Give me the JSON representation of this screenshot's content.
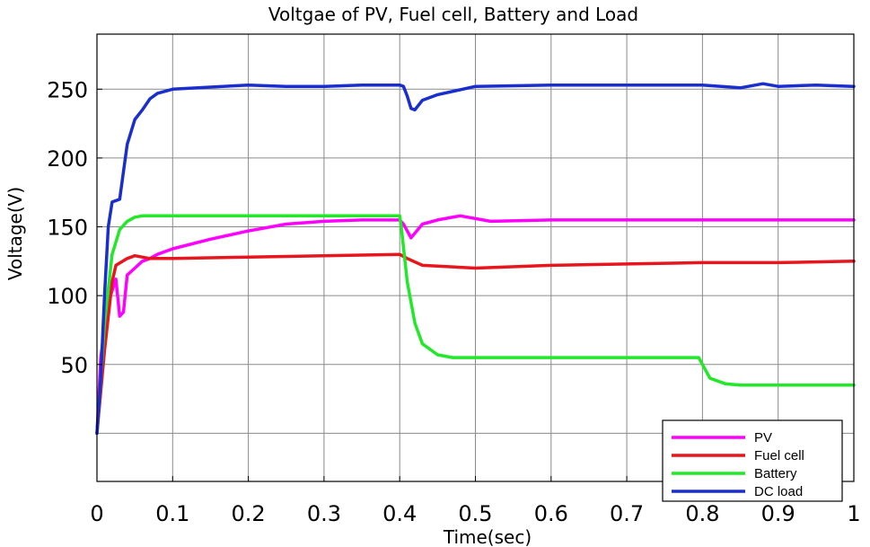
{
  "chart_data": {
    "type": "line",
    "title": "Voltgae of PV, Fuel cell, Battery and Load",
    "xlabel": "Time(sec)",
    "ylabel": "Voltage(V)",
    "xlim": [
      0,
      1
    ],
    "ylim": [
      -35,
      290
    ],
    "xticks": [
      0,
      0.1,
      0.2,
      0.3,
      0.4,
      0.5,
      0.6,
      0.7,
      0.8,
      0.9,
      1
    ],
    "xtick_labels": [
      "0",
      "0.1",
      "0.2",
      "0.3",
      "0.4",
      "0.5",
      "0.6",
      "0.7",
      "0.8",
      "0.9",
      "1"
    ],
    "yticks": [
      50,
      100,
      150,
      200,
      250
    ],
    "ytick_labels": [
      "50",
      "100",
      "150",
      "200",
      "250"
    ],
    "grid_lines_y": [
      0,
      50,
      100,
      150,
      200,
      250
    ],
    "grid": true,
    "legend_position": "bottom-right",
    "series": [
      {
        "name": "PV",
        "color": "#ff00ff",
        "points": [
          [
            0.0,
            0
          ],
          [
            0.005,
            55
          ],
          [
            0.015,
            95
          ],
          [
            0.025,
            112
          ],
          [
            0.03,
            85
          ],
          [
            0.035,
            88
          ],
          [
            0.04,
            115
          ],
          [
            0.05,
            120
          ],
          [
            0.06,
            125
          ],
          [
            0.07,
            127
          ],
          [
            0.08,
            130
          ],
          [
            0.1,
            134
          ],
          [
            0.15,
            141
          ],
          [
            0.2,
            147
          ],
          [
            0.25,
            152
          ],
          [
            0.3,
            154
          ],
          [
            0.35,
            155
          ],
          [
            0.4,
            155
          ],
          [
            0.405,
            152
          ],
          [
            0.415,
            142
          ],
          [
            0.43,
            152
          ],
          [
            0.45,
            155
          ],
          [
            0.48,
            158
          ],
          [
            0.52,
            154
          ],
          [
            0.6,
            155
          ],
          [
            0.7,
            155
          ],
          [
            0.8,
            155
          ],
          [
            0.9,
            155
          ],
          [
            1.0,
            155
          ]
        ]
      },
      {
        "name": "Fuel cell",
        "color": "#e8151e",
        "points": [
          [
            0.0,
            0
          ],
          [
            0.01,
            60
          ],
          [
            0.02,
            110
          ],
          [
            0.025,
            122
          ],
          [
            0.04,
            127
          ],
          [
            0.05,
            129
          ],
          [
            0.07,
            127
          ],
          [
            0.1,
            127
          ],
          [
            0.2,
            128
          ],
          [
            0.3,
            129
          ],
          [
            0.4,
            130
          ],
          [
            0.41,
            127
          ],
          [
            0.43,
            122
          ],
          [
            0.5,
            120
          ],
          [
            0.6,
            122
          ],
          [
            0.7,
            123
          ],
          [
            0.8,
            124
          ],
          [
            0.9,
            124
          ],
          [
            1.0,
            125
          ]
        ]
      },
      {
        "name": "Battery",
        "color": "#22e82a",
        "points": [
          [
            0.0,
            0
          ],
          [
            0.01,
            80
          ],
          [
            0.02,
            130
          ],
          [
            0.03,
            148
          ],
          [
            0.04,
            154
          ],
          [
            0.05,
            157
          ],
          [
            0.06,
            158
          ],
          [
            0.2,
            158
          ],
          [
            0.3,
            158
          ],
          [
            0.4,
            158
          ],
          [
            0.402,
            150
          ],
          [
            0.41,
            110
          ],
          [
            0.42,
            80
          ],
          [
            0.43,
            65
          ],
          [
            0.45,
            57
          ],
          [
            0.47,
            55
          ],
          [
            0.5,
            55
          ],
          [
            0.6,
            55
          ],
          [
            0.7,
            55
          ],
          [
            0.795,
            55
          ],
          [
            0.8,
            50
          ],
          [
            0.81,
            40
          ],
          [
            0.83,
            36
          ],
          [
            0.85,
            35
          ],
          [
            0.9,
            35
          ],
          [
            1.0,
            35
          ]
        ]
      },
      {
        "name": "DC load",
        "color": "#1a2ed0",
        "points": [
          [
            0.0,
            0
          ],
          [
            0.005,
            40
          ],
          [
            0.01,
            100
          ],
          [
            0.015,
            150
          ],
          [
            0.02,
            168
          ],
          [
            0.03,
            170
          ],
          [
            0.035,
            190
          ],
          [
            0.04,
            210
          ],
          [
            0.05,
            228
          ],
          [
            0.06,
            235
          ],
          [
            0.07,
            243
          ],
          [
            0.08,
            247
          ],
          [
            0.1,
            250
          ],
          [
            0.2,
            253
          ],
          [
            0.25,
            252
          ],
          [
            0.3,
            252
          ],
          [
            0.35,
            253
          ],
          [
            0.4,
            253
          ],
          [
            0.405,
            252
          ],
          [
            0.41,
            245
          ],
          [
            0.415,
            236
          ],
          [
            0.42,
            235
          ],
          [
            0.43,
            242
          ],
          [
            0.45,
            246
          ],
          [
            0.5,
            252
          ],
          [
            0.6,
            253
          ],
          [
            0.7,
            253
          ],
          [
            0.8,
            253
          ],
          [
            0.85,
            251
          ],
          [
            0.88,
            254
          ],
          [
            0.9,
            252
          ],
          [
            0.95,
            253
          ],
          [
            1.0,
            252
          ]
        ]
      }
    ]
  }
}
